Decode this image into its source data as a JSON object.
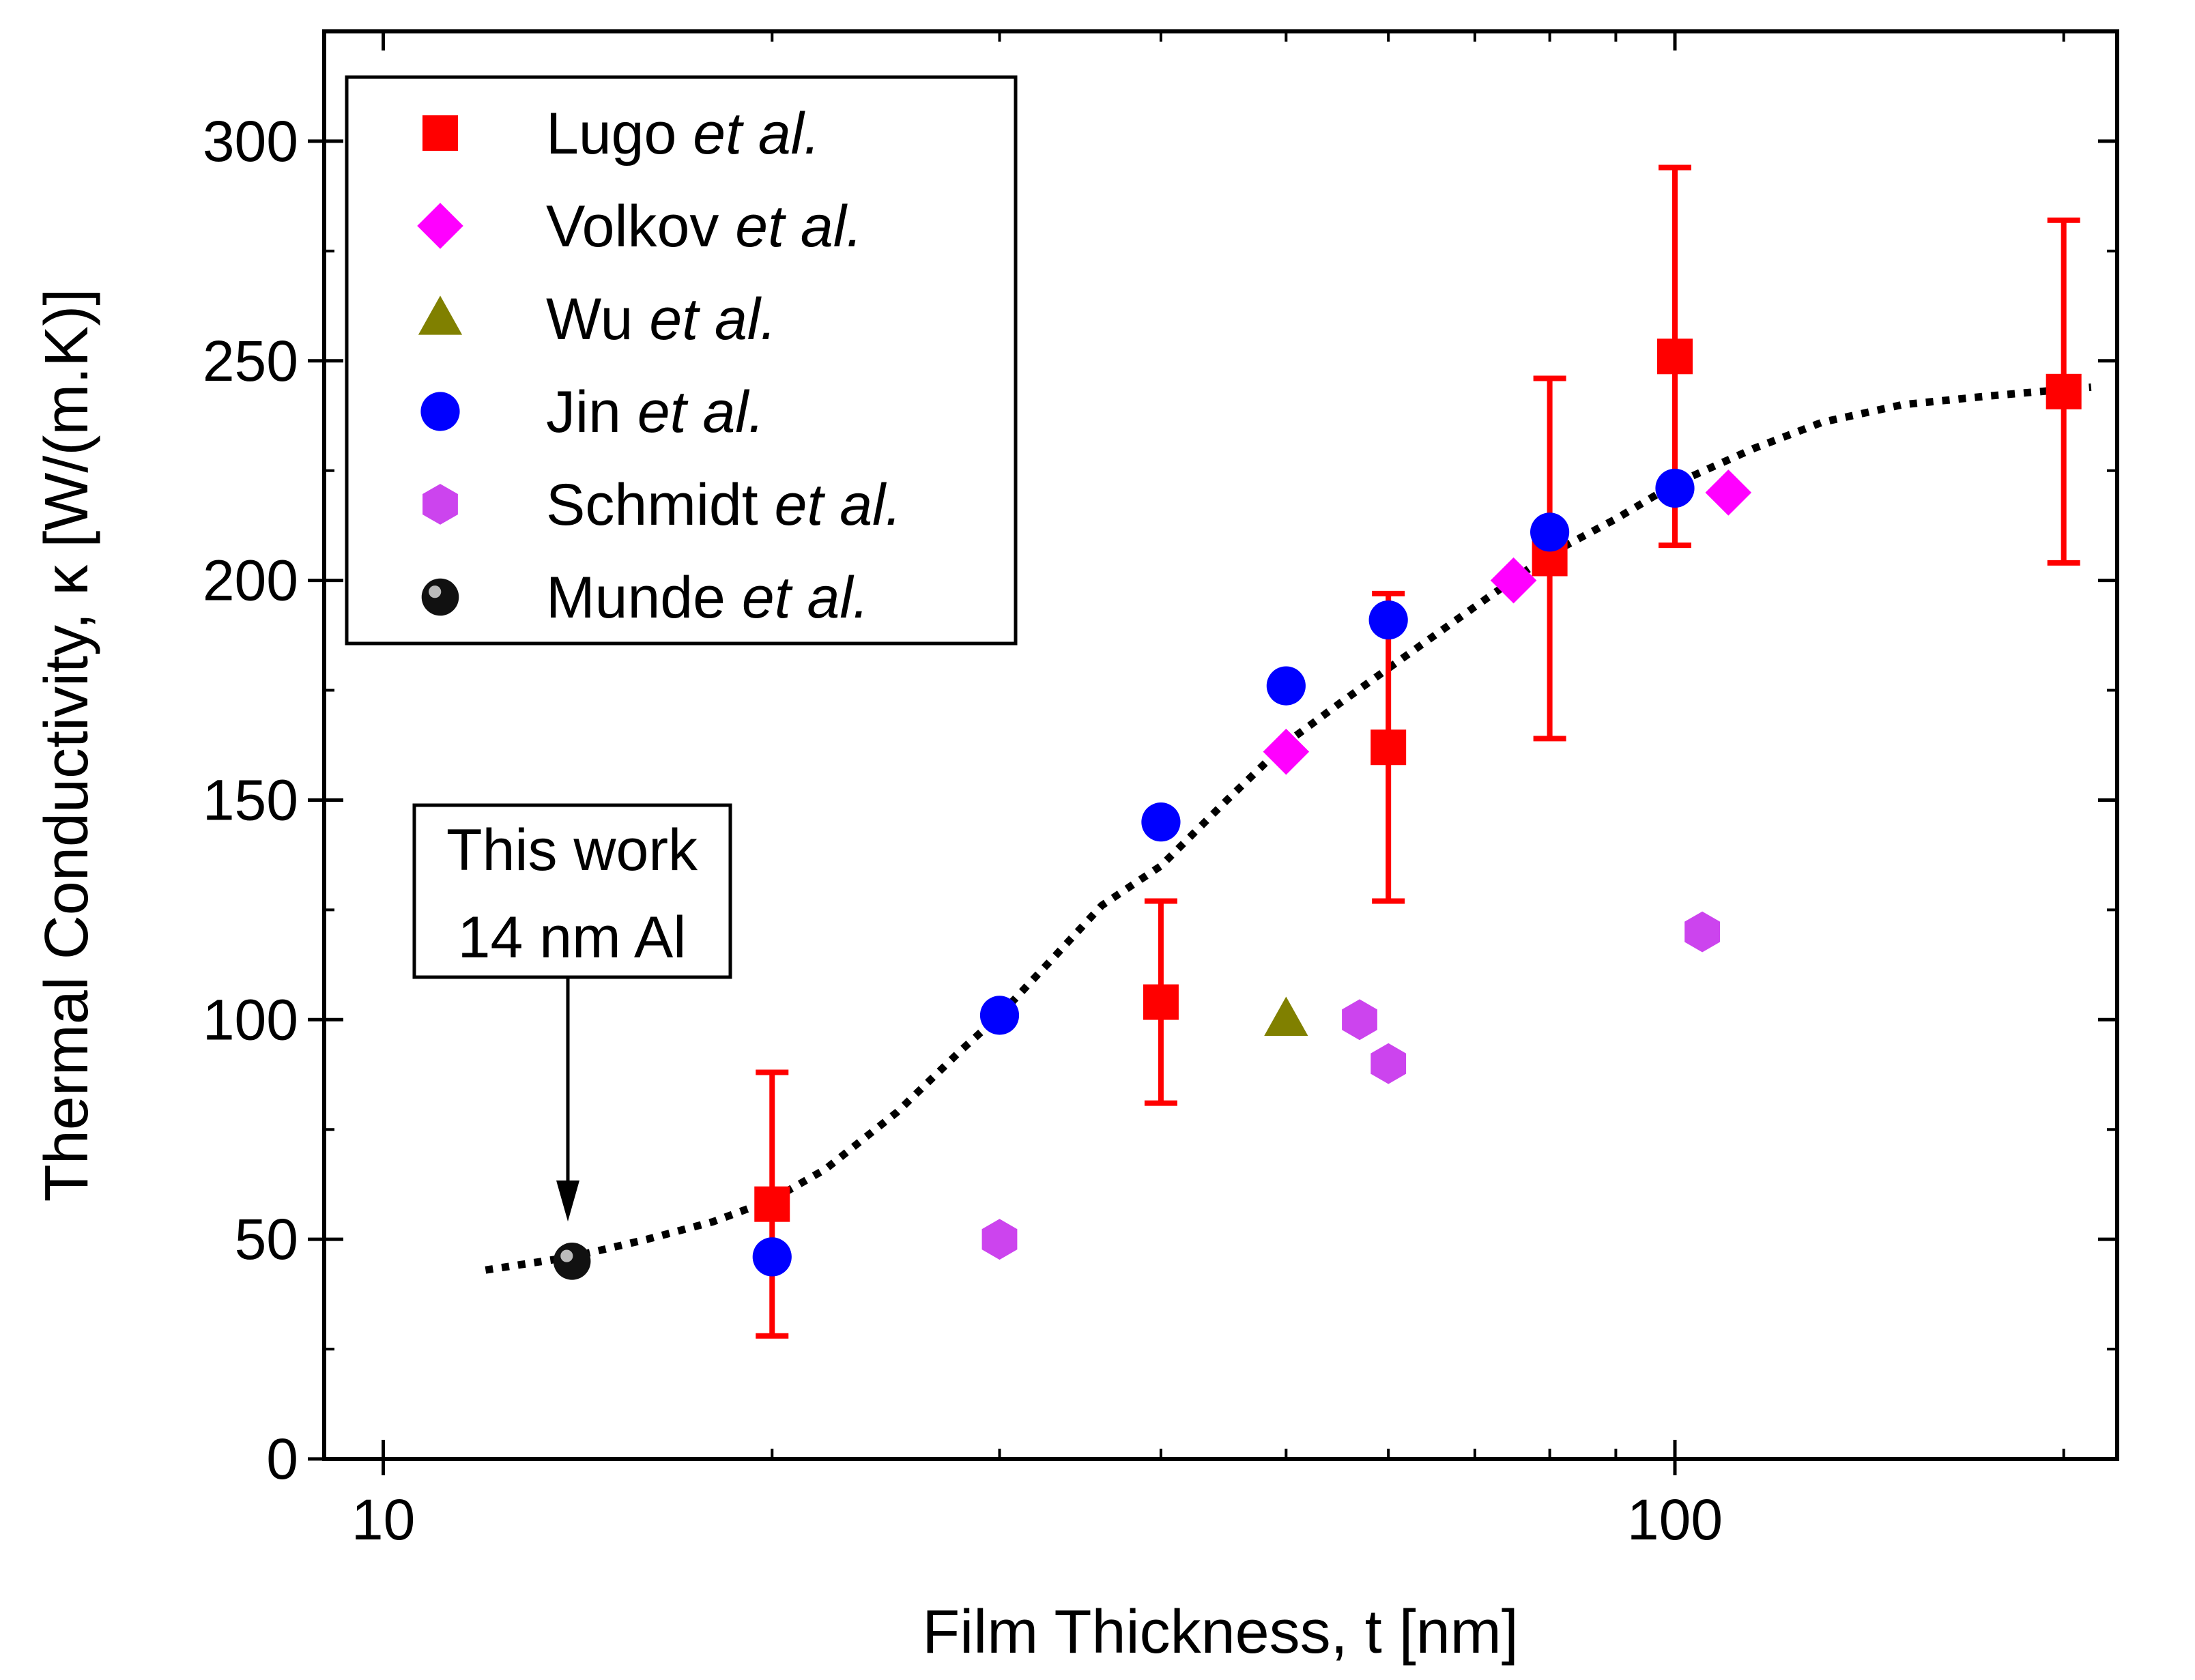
{
  "chart_data": {
    "type": "scatter",
    "xscale": "log",
    "xlabel": "Film Thickness, t [nm]",
    "ylabel": "Thermal Conductivity, κ [W/(m.K)]",
    "xlim": [
      9,
      220
    ],
    "ylim": [
      0,
      325
    ],
    "xticks": [
      10,
      100
    ],
    "xtick_labels": [
      "10",
      "100"
    ],
    "yticks": [
      0,
      50,
      100,
      150,
      200,
      250,
      300
    ],
    "ytick_labels": [
      "0",
      "50",
      "100",
      "150",
      "200",
      "250",
      "300"
    ],
    "legend_position": "top-left",
    "series": [
      {
        "name": "Lugo",
        "suffix": "et al.",
        "marker": "square",
        "color": "#ff0000",
        "points": [
          {
            "x": 20,
            "y": 58,
            "lo": 28,
            "hi": 88
          },
          {
            "x": 40,
            "y": 104,
            "lo": 81,
            "hi": 127
          },
          {
            "x": 60,
            "y": 162,
            "lo": 127,
            "hi": 197
          },
          {
            "x": 80,
            "y": 205,
            "lo": 164,
            "hi": 246
          },
          {
            "x": 100,
            "y": 251,
            "lo": 208,
            "hi": 294
          },
          {
            "x": 200,
            "y": 243,
            "lo": 204,
            "hi": 282
          }
        ]
      },
      {
        "name": "Volkov",
        "suffix": "et al.",
        "marker": "diamond",
        "color": "#ff00ff",
        "points": [
          {
            "x": 50,
            "y": 161
          },
          {
            "x": 75,
            "y": 200
          },
          {
            "x": 110,
            "y": 220
          }
        ]
      },
      {
        "name": "Wu",
        "suffix": "et al.",
        "marker": "triangle",
        "color": "#808000",
        "points": [
          {
            "x": 50,
            "y": 100
          }
        ]
      },
      {
        "name": "Jin",
        "suffix": "et al.",
        "marker": "circle",
        "color": "#0000ff",
        "points": [
          {
            "x": 20,
            "y": 46
          },
          {
            "x": 30,
            "y": 101
          },
          {
            "x": 40,
            "y": 145
          },
          {
            "x": 50,
            "y": 176
          },
          {
            "x": 60,
            "y": 191
          },
          {
            "x": 80,
            "y": 211
          },
          {
            "x": 100,
            "y": 221
          }
        ]
      },
      {
        "name": "Schmidt",
        "suffix": "et al.",
        "marker": "hexagon",
        "color": "#cc44ee",
        "points": [
          {
            "x": 30,
            "y": 50
          },
          {
            "x": 57,
            "y": 100
          },
          {
            "x": 60,
            "y": 90
          },
          {
            "x": 105,
            "y": 120
          }
        ]
      },
      {
        "name": "Munde",
        "suffix": "et al.",
        "marker": "sphere",
        "color": "#000000",
        "points": [
          {
            "x": 14,
            "y": 45
          }
        ]
      }
    ],
    "fit_curve": {
      "style": "dotted",
      "color": "#000000",
      "points": [
        [
          12,
          43
        ],
        [
          14,
          46
        ],
        [
          16,
          50
        ],
        [
          18,
          54
        ],
        [
          20,
          59
        ],
        [
          22,
          66
        ],
        [
          25,
          79
        ],
        [
          28,
          93
        ],
        [
          30,
          101
        ],
        [
          33,
          114
        ],
        [
          36,
          126
        ],
        [
          40,
          135
        ],
        [
          45,
          150
        ],
        [
          50,
          163
        ],
        [
          55,
          172
        ],
        [
          60,
          180
        ],
        [
          70,
          194
        ],
        [
          80,
          206
        ],
        [
          90,
          214
        ],
        [
          100,
          222
        ],
        [
          115,
          230
        ],
        [
          130,
          236
        ],
        [
          150,
          240
        ],
        [
          175,
          242
        ],
        [
          210,
          244
        ]
      ]
    },
    "annotation": {
      "lines": [
        "This work",
        "14 nm Al"
      ],
      "target": {
        "x": 14,
        "y": 46
      }
    }
  }
}
